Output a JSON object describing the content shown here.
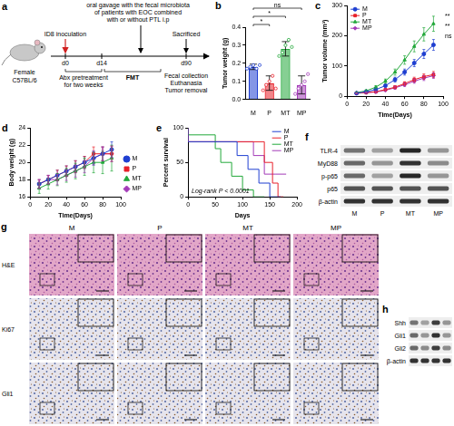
{
  "chart_data": [
    {
      "panel": "b",
      "type": "bar",
      "y_label": "Tumor weight (g)",
      "categories": [
        "M",
        "P",
        "MT",
        "MP"
      ],
      "values": [
        0.18,
        0.09,
        0.28,
        0.08
      ],
      "errors": [
        0.015,
        0.04,
        0.04,
        0.05
      ],
      "points": [
        [
          0.17,
          0.18,
          0.19,
          0.17,
          0.19
        ],
        [
          0.05,
          0.08,
          0.1,
          0.13,
          0.06
        ],
        [
          0.24,
          0.26,
          0.3,
          0.33,
          0.29
        ],
        [
          0.03,
          0.06,
          0.08,
          0.1,
          0.14
        ]
      ],
      "colors": [
        "#1f3fd1",
        "#e8202a",
        "#22a83a",
        "#a33ab8"
      ],
      "ylim": [
        0,
        0.4
      ],
      "yticks": [
        {
          "value": 0,
          "label": "0.0"
        },
        0.1,
        0.2,
        0.3,
        0.4
      ],
      "brackets": [
        {
          "from": "M",
          "to": "P",
          "label": "*"
        },
        {
          "from": "M",
          "to": "MT",
          "label": "*"
        },
        {
          "from": "M",
          "to": "MP",
          "label": "ns"
        }
      ],
      "grid": false
    },
    {
      "panel": "c",
      "type": "line",
      "x_label": "Time(Days)",
      "y_label": "Tumor volume (mm³)",
      "x": [
        10,
        20,
        30,
        40,
        50,
        60,
        70,
        80,
        90
      ],
      "series": [
        {
          "name": "M",
          "color": "#1f3fd1",
          "marker": "circle",
          "values": [
            10,
            15,
            22,
            35,
            55,
            80,
            110,
            140,
            170
          ],
          "errors": [
            2,
            3,
            4,
            5,
            8,
            10,
            12,
            15,
            18
          ]
        },
        {
          "name": "P",
          "color": "#e8202a",
          "marker": "square",
          "values": [
            10,
            12,
            15,
            22,
            30,
            42,
            55,
            65,
            72
          ],
          "errors": [
            2,
            2,
            3,
            4,
            5,
            6,
            8,
            9,
            10
          ]
        },
        {
          "name": "MT",
          "color": "#22a83a",
          "marker": "triangle",
          "values": [
            12,
            18,
            30,
            50,
            80,
            120,
            165,
            205,
            240
          ],
          "errors": [
            2,
            3,
            5,
            7,
            10,
            14,
            18,
            22,
            25
          ]
        },
        {
          "name": "MP",
          "color": "#a33ab8",
          "marker": "diamond",
          "values": [
            10,
            12,
            14,
            20,
            28,
            38,
            50,
            60,
            68
          ],
          "errors": [
            2,
            2,
            3,
            4,
            5,
            6,
            7,
            8,
            9
          ]
        }
      ],
      "xlim": [
        0,
        100
      ],
      "xticks": [
        0,
        20,
        40,
        60,
        80,
        100
      ],
      "ylim": [
        0,
        300
      ],
      "yticks": [
        0,
        100,
        200,
        300
      ],
      "annotations": [
        "**",
        "**",
        "ns"
      ],
      "legend": "top-left",
      "grid": false
    },
    {
      "panel": "d",
      "type": "line",
      "x_label": "Time(Days)",
      "y_label": "Body weight (g)",
      "x": [
        10,
        20,
        30,
        40,
        50,
        60,
        70,
        80,
        90
      ],
      "series": [
        {
          "name": "M",
          "color": "#1f3fd1",
          "marker": "circle",
          "values": [
            17.5,
            18,
            18.5,
            19,
            19.5,
            20,
            20.5,
            21,
            21.5
          ],
          "errors": [
            0.5,
            0.5,
            0.6,
            0.6,
            0.7,
            0.7,
            0.8,
            0.8,
            0.9
          ]
        },
        {
          "name": "P",
          "color": "#e8202a",
          "marker": "square",
          "values": [
            17.5,
            18,
            18.5,
            19,
            19.5,
            20,
            21,
            21,
            21
          ],
          "errors": [
            0.5,
            0.5,
            0.6,
            0.6,
            0.7,
            0.7,
            0.8,
            0.8,
            0.9
          ]
        },
        {
          "name": "MT",
          "color": "#22a83a",
          "marker": "triangle",
          "values": [
            17,
            17.5,
            18,
            18.5,
            19,
            19.5,
            20,
            20,
            20.5
          ],
          "errors": [
            0.6,
            0.6,
            0.7,
            0.8,
            0.9,
            1,
            1.2,
            1.3,
            1.5
          ]
        },
        {
          "name": "MP",
          "color": "#a33ab8",
          "marker": "diamond",
          "values": [
            17.5,
            18,
            18,
            18.5,
            19,
            19.5,
            20.5,
            21,
            21
          ],
          "errors": [
            0.5,
            0.5,
            0.6,
            0.6,
            0.7,
            0.7,
            0.8,
            0.8,
            0.9
          ]
        }
      ],
      "xlim": [
        0,
        100
      ],
      "xticks": [
        0,
        20,
        40,
        60,
        80,
        100
      ],
      "ylim": [
        16,
        24
      ],
      "yticks": [
        16,
        18,
        20,
        22,
        24
      ],
      "legend": "right",
      "grid": false
    },
    {
      "panel": "e",
      "type": "line",
      "x_label": "Days",
      "y_label": "Percent survival",
      "line_style": "step",
      "marker": "none",
      "series": [
        {
          "name": "M",
          "color": "#1f3fd1",
          "x": [
            0,
            90,
            110,
            130,
            150,
            170
          ],
          "values": [
            100,
            80,
            60,
            40,
            20,
            0
          ]
        },
        {
          "name": "P",
          "color": "#e8202a",
          "x": [
            0,
            140,
            155,
            165,
            175
          ],
          "values": [
            100,
            80,
            50,
            20,
            0
          ]
        },
        {
          "name": "MT",
          "color": "#22a83a",
          "x": [
            0,
            50,
            60,
            80,
            100,
            120,
            140
          ],
          "values": [
            100,
            90,
            70,
            50,
            30,
            10,
            0
          ]
        },
        {
          "name": "MP",
          "color": "#a33ab8",
          "x": [
            0,
            120,
            140,
            160,
            180
          ],
          "values": [
            100,
            80,
            60,
            33,
            33
          ]
        }
      ],
      "xlim": [
        0,
        200
      ],
      "xticks": [
        0,
        50,
        100,
        150,
        200
      ],
      "ylim": [
        0,
        100
      ],
      "yticks": [
        0,
        50,
        100
      ],
      "annotation": "Log-rank P < 0.0001",
      "legend": "top-right",
      "grid": false
    }
  ],
  "panel_a": {
    "label": "a",
    "mouse": [
      "Female",
      "C57BL/6"
    ],
    "inoculation": "ID8 inoculation",
    "gavage": [
      "oral gavage with the fecal microbiota",
      "of patients with EOC combined",
      "with or without PTL i.p"
    ],
    "sacrificed": "Sacrificed",
    "timepoints": [
      "d0",
      "d14",
      "d90"
    ],
    "pretreatment": [
      "Abx pretreatment",
      "for two weeks"
    ],
    "fmt": "FMT",
    "endpoints": [
      "Fecal collection",
      "Euthanasia",
      "Tumor removal"
    ]
  },
  "panel_f": {
    "label": "f",
    "lanes": [
      "M",
      "P",
      "MT",
      "MP"
    ],
    "rows": [
      {
        "name": "TLR-4",
        "intensity": [
          0.55,
          0.35,
          0.9,
          0.4
        ]
      },
      {
        "name": "MyD88",
        "intensity": [
          0.6,
          0.4,
          0.85,
          0.45
        ]
      },
      {
        "name": "p-p65",
        "intensity": [
          0.6,
          0.35,
          0.9,
          0.4
        ]
      },
      {
        "name": "p65",
        "intensity": [
          0.7,
          0.7,
          0.7,
          0.7
        ]
      },
      {
        "name": "β-actin",
        "intensity": [
          0.85,
          0.85,
          0.85,
          0.85
        ]
      }
    ]
  },
  "panel_g": {
    "label": "g",
    "columns": [
      "M",
      "P",
      "MT",
      "MP"
    ],
    "rows": [
      "H&E",
      "Ki67",
      "Gli1"
    ]
  },
  "panel_h": {
    "label": "h",
    "rows": [
      {
        "name": "Shh",
        "intensity": [
          0.55,
          0.35,
          0.8,
          0.4
        ]
      },
      {
        "name": "Gli1",
        "intensity": [
          0.6,
          0.4,
          0.85,
          0.4
        ]
      },
      {
        "name": "Gli2",
        "intensity": [
          0.6,
          0.45,
          0.8,
          0.45
        ]
      },
      {
        "name": "β-actin",
        "intensity": [
          0.85,
          0.85,
          0.85,
          0.85
        ]
      }
    ]
  }
}
